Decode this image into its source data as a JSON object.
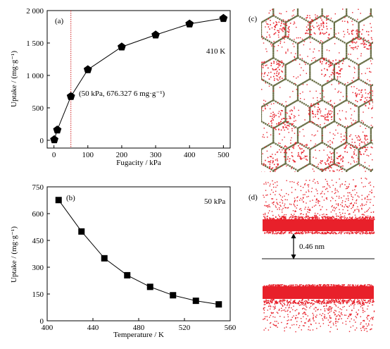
{
  "chart_data": [
    {
      "panel": "(a)",
      "type": "line",
      "xlabel": "Fugacity / kPa",
      "ylabel": "Uptake / (mg·g⁻¹)",
      "condition": "410 K",
      "marker": "pentagon",
      "x": [
        1,
        10,
        50,
        100,
        200,
        300,
        400,
        500
      ],
      "y": [
        10,
        160,
        676.3276,
        1090,
        1440,
        1625,
        1795,
        1880
      ],
      "xlim": [
        -20,
        520
      ],
      "ylim": [
        -120,
        2000
      ],
      "xticks": [
        0,
        100,
        200,
        300,
        400,
        500
      ],
      "yticks": [
        0,
        500,
        1000,
        1500,
        2000
      ],
      "ytick_labels": [
        "0",
        "500",
        "1 000",
        "1 500",
        "2 000"
      ],
      "reference_line_x": 50,
      "reference_line_color": "#d22222",
      "annotation": "(50 kPa, 676.327 6 mg·g⁻¹)"
    },
    {
      "panel": "(b)",
      "type": "line",
      "xlabel": "Temperature / K",
      "ylabel": "Uptake / (mg·g⁻¹)",
      "condition": "50 kPa",
      "marker": "square",
      "x": [
        410,
        430,
        450,
        470,
        490,
        510,
        530,
        550
      ],
      "y": [
        676,
        500,
        350,
        255,
        190,
        143,
        112,
        92
      ],
      "xlim": [
        400,
        560
      ],
      "ylim": [
        0,
        750
      ],
      "xticks": [
        400,
        440,
        480,
        520,
        560
      ],
      "yticks": [
        0,
        150,
        300,
        450,
        600,
        750
      ]
    }
  ],
  "images": {
    "c": {
      "panel": "(c)",
      "description_icon": "honeycomb-simulation-snapshot",
      "dot_color": "#e8202a"
    },
    "d": {
      "panel": "(d)",
      "description_icon": "slit-pore-density-snapshot",
      "dot_color": "#e8202a",
      "distance_label": "0.46 nm"
    }
  }
}
